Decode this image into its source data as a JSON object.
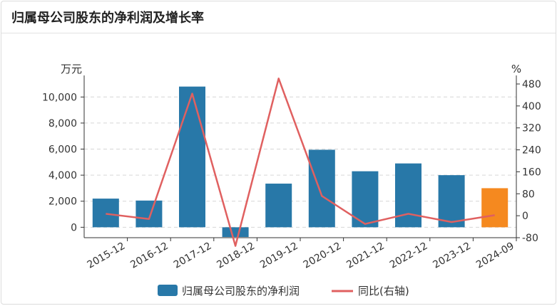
{
  "header": {
    "title": "归属母公司股东的净利润及增长率"
  },
  "chart_data": {
    "type": "bar",
    "title": "归属母公司股东的净利润及增长率",
    "left_unit": "万元",
    "right_unit": "%",
    "categories": [
      "2015-12",
      "2016-12",
      "2017-12",
      "2018-12",
      "2019-12",
      "2020-12",
      "2021-12",
      "2022-12",
      "2023-12",
      "2024-09"
    ],
    "left_axis": {
      "ylim": [
        -800,
        11000
      ],
      "ticks": [
        0,
        2000,
        4000,
        6000,
        8000,
        10000
      ],
      "tick_labels": [
        "0",
        "2,000",
        "4,000",
        "6,000",
        "8,000",
        "10,000"
      ]
    },
    "right_axis": {
      "ylim": [
        -80,
        480
      ],
      "ticks": [
        -80,
        0,
        80,
        160,
        240,
        320,
        400,
        480
      ],
      "tick_labels": [
        "-80",
        "0",
        "80",
        "160",
        "240",
        "320",
        "400",
        "480"
      ]
    },
    "series": [
      {
        "name": "归属母公司股东的净利润",
        "type": "bar",
        "axis": "left",
        "values": [
          2200,
          2050,
          10800,
          -750,
          3350,
          5950,
          4300,
          4900,
          4000,
          3000
        ],
        "color": "#2878a8",
        "highlight_color": "#f5891f",
        "highlight_index": 9
      },
      {
        "name": "同比(右轴)",
        "type": "line",
        "axis": "right",
        "values": [
          7,
          -12,
          445,
          -110,
          500,
          72,
          -30,
          7,
          -23,
          2
        ],
        "color": "#e06060"
      }
    ],
    "legend_position": "bottom-center",
    "grid": "horizontal-dashed"
  }
}
